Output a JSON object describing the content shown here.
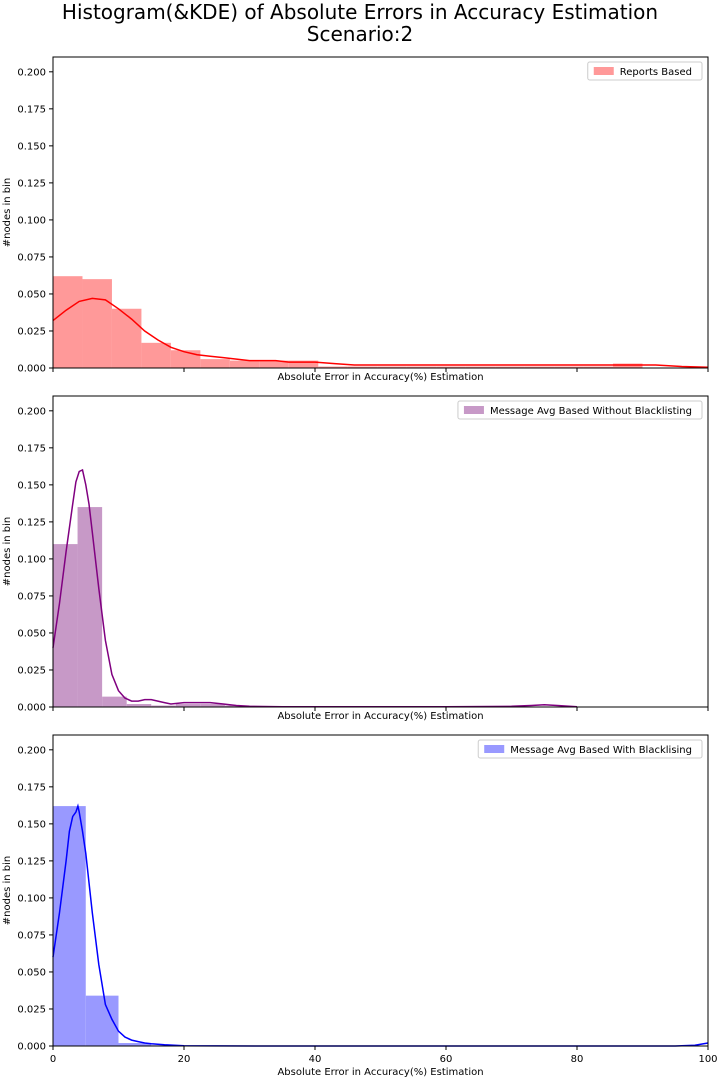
{
  "figure": {
    "title_line1": "Histogram(&KDE) of Absolute Errors in Accuracy Estimation",
    "title_line2": "Scenario:2"
  },
  "chart_data": [
    {
      "type": "histogram",
      "legend_label": "Reports Based",
      "legend_position": "top-right",
      "xlabel": "Absolute Error in Accuracy(%) Estimation",
      "ylabel": "#nodes in bin",
      "xlim": [
        0,
        100
      ],
      "ylim": [
        0,
        0.21
      ],
      "yticks": [
        "0.000",
        "0.025",
        "0.050",
        "0.075",
        "0.100",
        "0.125",
        "0.150",
        "0.175",
        "0.200"
      ],
      "xticks_labels_shown": false,
      "bar_color": "#ff9999",
      "kde_color": "#ff0000",
      "bins": [
        {
          "x0": 0,
          "x1": 4.5,
          "value": 0.062
        },
        {
          "x0": 4.5,
          "x1": 9,
          "value": 0.06
        },
        {
          "x0": 9,
          "x1": 13.5,
          "value": 0.04
        },
        {
          "x0": 13.5,
          "x1": 18,
          "value": 0.017
        },
        {
          "x0": 18,
          "x1": 22.5,
          "value": 0.012
        },
        {
          "x0": 22.5,
          "x1": 27,
          "value": 0.006
        },
        {
          "x0": 27,
          "x1": 31.5,
          "value": 0.005
        },
        {
          "x0": 31.5,
          "x1": 36,
          "value": 0.005
        },
        {
          "x0": 36,
          "x1": 40.5,
          "value": 0.005
        },
        {
          "x0": 40.5,
          "x1": 45,
          "value": 0.001
        },
        {
          "x0": 45,
          "x1": 49.5,
          "value": 0.001
        },
        {
          "x0": 49.5,
          "x1": 54,
          "value": 0.001
        },
        {
          "x0": 54,
          "x1": 58.5,
          "value": 0.001
        },
        {
          "x0": 58.5,
          "x1": 63,
          "value": 0.001
        },
        {
          "x0": 63,
          "x1": 67.5,
          "value": 0.001
        },
        {
          "x0": 67.5,
          "x1": 72,
          "value": 0.001
        },
        {
          "x0": 72,
          "x1": 76.5,
          "value": 0.001
        },
        {
          "x0": 76.5,
          "x1": 81,
          "value": 0.001
        },
        {
          "x0": 81,
          "x1": 85.5,
          "value": 0.001
        },
        {
          "x0": 85.5,
          "x1": 90,
          "value": 0.003
        }
      ],
      "kde": [
        [
          0,
          0.032
        ],
        [
          2,
          0.039
        ],
        [
          4,
          0.045
        ],
        [
          6,
          0.047
        ],
        [
          8,
          0.046
        ],
        [
          10,
          0.04
        ],
        [
          12,
          0.033
        ],
        [
          14,
          0.025
        ],
        [
          16,
          0.019
        ],
        [
          18,
          0.014
        ],
        [
          20,
          0.011
        ],
        [
          22,
          0.009
        ],
        [
          24,
          0.008
        ],
        [
          26,
          0.007
        ],
        [
          28,
          0.006
        ],
        [
          30,
          0.005
        ],
        [
          32,
          0.005
        ],
        [
          34,
          0.005
        ],
        [
          36,
          0.004
        ],
        [
          38,
          0.004
        ],
        [
          40,
          0.004
        ],
        [
          43,
          0.003
        ],
        [
          46,
          0.002
        ],
        [
          50,
          0.002
        ],
        [
          55,
          0.002
        ],
        [
          60,
          0.002
        ],
        [
          65,
          0.002
        ],
        [
          70,
          0.002
        ],
        [
          75,
          0.002
        ],
        [
          80,
          0.002
        ],
        [
          85,
          0.002
        ],
        [
          88,
          0.002
        ],
        [
          92,
          0.002
        ],
        [
          96,
          0.001
        ],
        [
          100,
          0.0005
        ]
      ]
    },
    {
      "type": "histogram",
      "legend_label": "Message Avg Based Without Blacklisting",
      "legend_position": "top-right",
      "xlabel": "Absolute Error in Accuracy(%) Estimation",
      "ylabel": "#nodes in bin",
      "xlim": [
        0,
        100
      ],
      "ylim": [
        0,
        0.21
      ],
      "yticks": [
        "0.000",
        "0.025",
        "0.050",
        "0.075",
        "0.100",
        "0.125",
        "0.150",
        "0.175",
        "0.200"
      ],
      "xticks_labels_shown": false,
      "bar_color": "#c799c7",
      "kde_color": "#800080",
      "bins": [
        {
          "x0": 0,
          "x1": 3.75,
          "value": 0.11
        },
        {
          "x0": 3.75,
          "x1": 7.5,
          "value": 0.135
        },
        {
          "x0": 7.5,
          "x1": 11.25,
          "value": 0.007
        },
        {
          "x0": 11.25,
          "x1": 15,
          "value": 0.002
        },
        {
          "x0": 15,
          "x1": 18.75,
          "value": 0.001
        },
        {
          "x0": 18.75,
          "x1": 22.5,
          "value": 0.002
        },
        {
          "x0": 22.5,
          "x1": 26.25,
          "value": 0.002
        },
        {
          "x0": 26.25,
          "x1": 30,
          "value": 0.001
        }
      ],
      "kde": [
        [
          0,
          0.04
        ],
        [
          1,
          0.07
        ],
        [
          2,
          0.105
        ],
        [
          3,
          0.137
        ],
        [
          3.5,
          0.152
        ],
        [
          4,
          0.159
        ],
        [
          4.5,
          0.16
        ],
        [
          5,
          0.15
        ],
        [
          5.5,
          0.137
        ],
        [
          6,
          0.118
        ],
        [
          7,
          0.08
        ],
        [
          8,
          0.045
        ],
        [
          9,
          0.022
        ],
        [
          10,
          0.011
        ],
        [
          11,
          0.006
        ],
        [
          12,
          0.004
        ],
        [
          13,
          0.004
        ],
        [
          14,
          0.005
        ],
        [
          15,
          0.005
        ],
        [
          16,
          0.004
        ],
        [
          17,
          0.003
        ],
        [
          18,
          0.002
        ],
        [
          20,
          0.003
        ],
        [
          22,
          0.003
        ],
        [
          24,
          0.003
        ],
        [
          26,
          0.002
        ],
        [
          28,
          0.001
        ],
        [
          30,
          0.0005
        ],
        [
          35,
          0.0002
        ],
        [
          40,
          0.0002
        ],
        [
          50,
          0.0002
        ],
        [
          60,
          0.0002
        ],
        [
          70,
          0.0005
        ],
        [
          73,
          0.001
        ],
        [
          75,
          0.0015
        ],
        [
          77,
          0.001
        ],
        [
          80,
          0.0002
        ]
      ]
    },
    {
      "type": "histogram",
      "legend_label": "Message Avg Based With Blacklising",
      "legend_position": "top-right",
      "xlabel": "Absolute Error in Accuracy(%) Estimation",
      "ylabel": "#nodes in bin",
      "xlim": [
        0,
        100
      ],
      "ylim": [
        0,
        0.21
      ],
      "yticks": [
        "0.000",
        "0.025",
        "0.050",
        "0.075",
        "0.100",
        "0.125",
        "0.150",
        "0.175",
        "0.200"
      ],
      "xticks": [
        "0",
        "20",
        "40",
        "60",
        "80",
        "100"
      ],
      "xticks_labels_shown": true,
      "bar_color": "#9999ff",
      "kde_color": "#0000ff",
      "bins": [
        {
          "x0": 0,
          "x1": 5,
          "value": 0.162
        },
        {
          "x0": 5,
          "x1": 10,
          "value": 0.034
        },
        {
          "x0": 10,
          "x1": 15,
          "value": 0.002
        },
        {
          "x0": 15,
          "x1": 20,
          "value": 0.0005
        }
      ],
      "kde": [
        [
          0,
          0.06
        ],
        [
          1,
          0.09
        ],
        [
          2,
          0.125
        ],
        [
          2.5,
          0.145
        ],
        [
          3,
          0.155
        ],
        [
          3.5,
          0.158
        ],
        [
          3.8,
          0.162
        ],
        [
          4,
          0.158
        ],
        [
          4.5,
          0.145
        ],
        [
          5,
          0.13
        ],
        [
          6,
          0.09
        ],
        [
          7,
          0.055
        ],
        [
          8,
          0.028
        ],
        [
          9,
          0.018
        ],
        [
          10,
          0.01
        ],
        [
          11,
          0.006
        ],
        [
          12,
          0.004
        ],
        [
          13,
          0.003
        ],
        [
          14,
          0.002
        ],
        [
          15,
          0.0015
        ],
        [
          17,
          0.0008
        ],
        [
          20,
          0.0002
        ],
        [
          25,
          0.0001
        ],
        [
          40,
          0.0
        ],
        [
          60,
          0.0
        ],
        [
          80,
          0.0
        ],
        [
          95,
          0.0
        ],
        [
          98,
          0.0005
        ],
        [
          100,
          0.002
        ]
      ]
    }
  ]
}
